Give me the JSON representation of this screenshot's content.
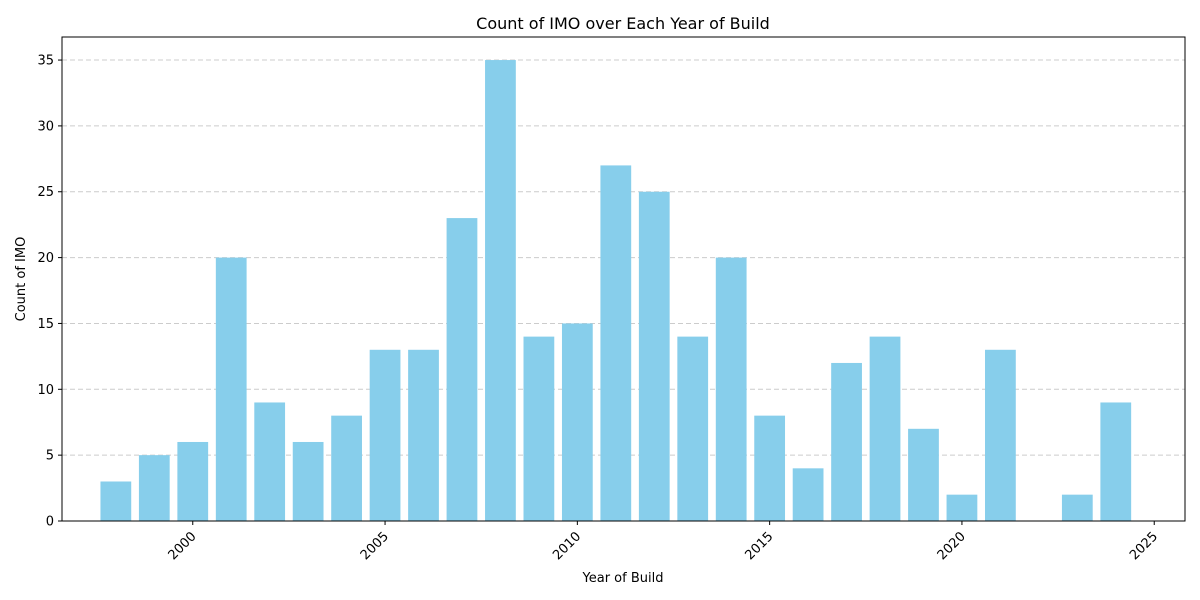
{
  "chart_data": {
    "type": "bar",
    "title": "Count of IMO over Each Year of Build",
    "xlabel": "Year of Build",
    "ylabel": "Count of IMO",
    "x": [
      1998,
      1999,
      2000,
      2001,
      2002,
      2003,
      2004,
      2005,
      2006,
      2007,
      2008,
      2009,
      2010,
      2011,
      2012,
      2013,
      2014,
      2015,
      2016,
      2017,
      2018,
      2019,
      2020,
      2021,
      2023,
      2024
    ],
    "values": [
      3,
      5,
      6,
      20,
      9,
      6,
      8,
      13,
      13,
      23,
      35,
      14,
      15,
      27,
      25,
      14,
      20,
      8,
      4,
      12,
      14,
      7,
      2,
      13,
      2,
      9
    ],
    "xlim": [
      1996.6,
      2025.8
    ],
    "ylim": [
      0,
      36.75
    ],
    "xticks": [
      "2000",
      "2005",
      "2010",
      "2015",
      "2020",
      "2025"
    ],
    "yticks": [
      "0",
      "5",
      "10",
      "15",
      "20",
      "25",
      "30",
      "35"
    ],
    "bar_color": "#87CEEB",
    "grid": "y-dashed",
    "legend": "none"
  }
}
